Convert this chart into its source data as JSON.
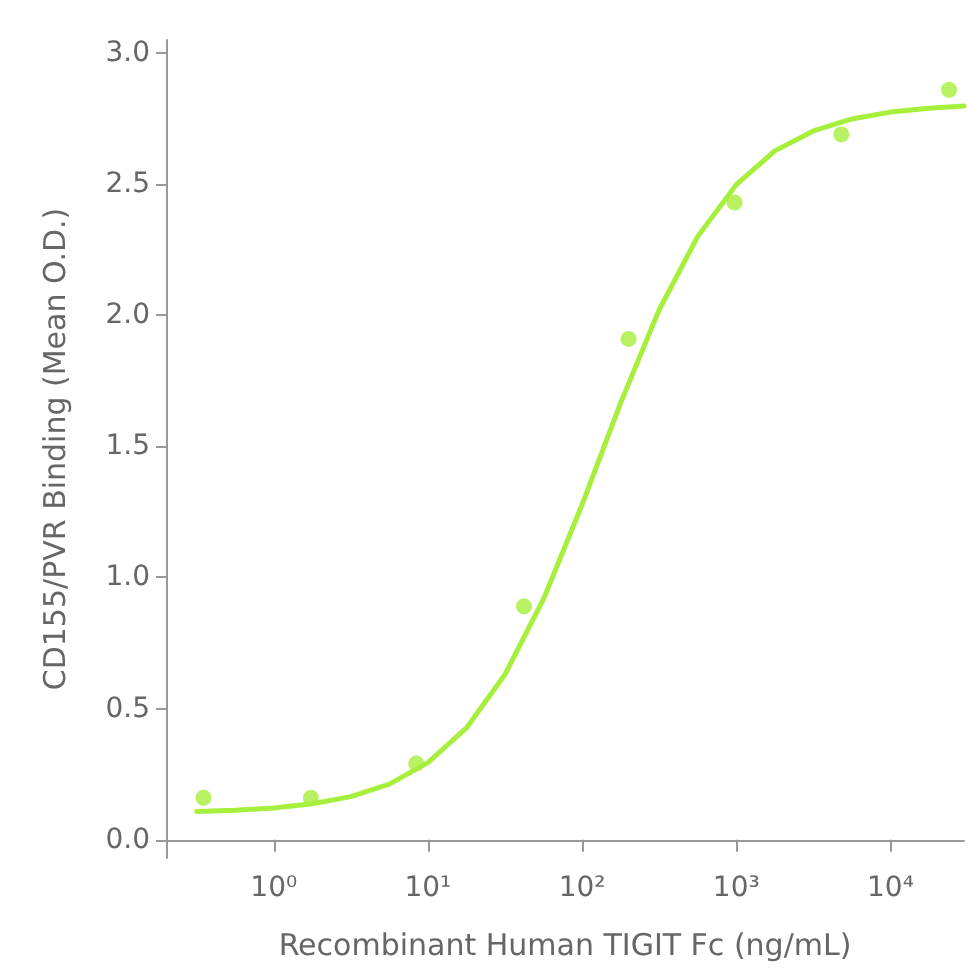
{
  "chart_data": {
    "type": "scatter",
    "xlabel": "Recombinant Human TIGIT Fc (ng/mL)",
    "ylabel": "CD155/PVR Binding (Mean O.D.)",
    "log": "x",
    "grid": false,
    "xlim": [
      0.2,
      30000
    ],
    "xticks": [
      {
        "value": 1,
        "label": "10⁰"
      },
      {
        "value": 10,
        "label": "10¹"
      },
      {
        "value": 100,
        "label": "10²"
      },
      {
        "value": 1000,
        "label": "10³"
      },
      {
        "value": 10000,
        "label": "10⁴"
      }
    ],
    "ylim": [
      -0.07,
      3.05
    ],
    "yticks": [
      {
        "value": 0,
        "label": "0.0"
      },
      {
        "value": 0.5,
        "label": "0.5"
      },
      {
        "value": 1,
        "label": "1.0"
      },
      {
        "value": 1.5,
        "label": "1.5"
      },
      {
        "value": 2,
        "label": "2.0"
      },
      {
        "value": 2.5,
        "label": "2.5"
      },
      {
        "value": 3,
        "label": "3.0"
      }
    ],
    "series": [
      {
        "marker": "circle",
        "color": "#a6ef3c",
        "x": [
          0.35,
          1.74,
          8.4,
          42,
          200,
          975,
          4800,
          24000
        ],
        "values": [
          0.16,
          0.16,
          0.29,
          0.89,
          1.91,
          2.43,
          2.69,
          2.86
        ]
      },
      {
        "type": "line",
        "marker": "none",
        "line_style": "solid",
        "color": "#a6ef3c",
        "x": [
          0.316,
          0.562,
          1,
          1.778,
          3.162,
          5.623,
          10,
          17.78,
          31.62,
          56.23,
          100,
          177.8,
          316.2,
          562.3,
          1000,
          1778,
          3162,
          5623,
          10000,
          17783,
          30000
        ],
        "values": [
          0.107,
          0.112,
          0.121,
          0.137,
          0.164,
          0.212,
          0.294,
          0.426,
          0.63,
          0.918,
          1.278,
          1.666,
          2.021,
          2.301,
          2.498,
          2.627,
          2.703,
          2.749,
          2.775,
          2.79,
          2.798
        ]
      }
    ]
  }
}
